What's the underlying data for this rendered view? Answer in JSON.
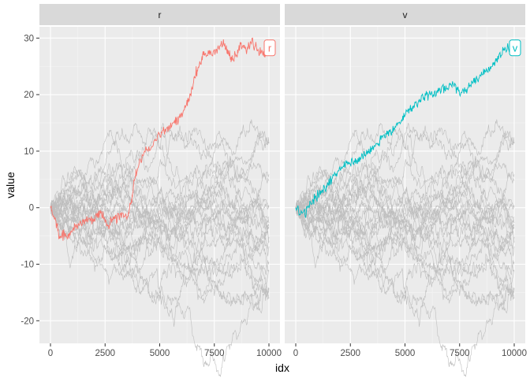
{
  "chart_data": {
    "type": "line",
    "description_note": "",
    "xlabel": "idx",
    "ylabel": "value",
    "xlim": [
      0,
      10000
    ],
    "ylim": [
      -24,
      32
    ],
    "x_ticks": [
      0,
      2500,
      5000,
      7500,
      10000
    ],
    "y_ticks": [
      -20,
      -10,
      0,
      10,
      20,
      30
    ],
    "grid": true,
    "background_series_count": 24,
    "background_color": "#BEBEBE",
    "panels": [
      {
        "strip": "r",
        "highlight": {
          "name": "r",
          "color": "#F8766D",
          "points": [
            [
              0,
              0
            ],
            [
              200,
              -2
            ],
            [
              400,
              -5
            ],
            [
              700,
              -5
            ],
            [
              1000,
              -4
            ],
            [
              1300,
              -3
            ],
            [
              1600,
              -2
            ],
            [
              2000,
              -2
            ],
            [
              2300,
              -1
            ],
            [
              2600,
              -3
            ],
            [
              2900,
              -2
            ],
            [
              3200,
              -1
            ],
            [
              3500,
              -2
            ],
            [
              3700,
              1
            ],
            [
              3850,
              5
            ],
            [
              4000,
              7
            ],
            [
              4300,
              10
            ],
            [
              4700,
              11
            ],
            [
              5000,
              13
            ],
            [
              5300,
              14
            ],
            [
              5600,
              15
            ],
            [
              5900,
              16
            ],
            [
              6200,
              18
            ],
            [
              6400,
              20
            ],
            [
              6600,
              23
            ],
            [
              6800,
              25
            ],
            [
              7000,
              27
            ],
            [
              7300,
              27
            ],
            [
              7600,
              28
            ],
            [
              7900,
              29
            ],
            [
              8100,
              28
            ],
            [
              8300,
              26
            ],
            [
              8500,
              27
            ],
            [
              8700,
              29
            ],
            [
              9000,
              28
            ],
            [
              9200,
              29
            ],
            [
              9500,
              28
            ],
            [
              9800,
              27
            ],
            [
              10000,
              28
            ]
          ],
          "label": "r"
        }
      },
      {
        "strip": "v",
        "highlight": {
          "name": "v",
          "color": "#00BFC4",
          "points": [
            [
              0,
              0
            ],
            [
              300,
              -1
            ],
            [
              600,
              0
            ],
            [
              900,
              2
            ],
            [
              1200,
              3
            ],
            [
              1500,
              4
            ],
            [
              1800,
              6
            ],
            [
              2100,
              7
            ],
            [
              2400,
              8
            ],
            [
              2700,
              8
            ],
            [
              3000,
              9
            ],
            [
              3300,
              10
            ],
            [
              3600,
              11
            ],
            [
              3900,
              12
            ],
            [
              4200,
              13
            ],
            [
              4500,
              14
            ],
            [
              4800,
              15
            ],
            [
              5100,
              17
            ],
            [
              5400,
              18
            ],
            [
              5700,
              19
            ],
            [
              6000,
              20
            ],
            [
              6300,
              20
            ],
            [
              6600,
              21
            ],
            [
              6900,
              21
            ],
            [
              7200,
              22
            ],
            [
              7500,
              20
            ],
            [
              7800,
              21
            ],
            [
              8100,
              22
            ],
            [
              8400,
              23
            ],
            [
              8700,
              24
            ],
            [
              9000,
              25
            ],
            [
              9300,
              27
            ],
            [
              9600,
              28
            ],
            [
              10000,
              28
            ]
          ],
          "label": "v"
        }
      }
    ]
  }
}
